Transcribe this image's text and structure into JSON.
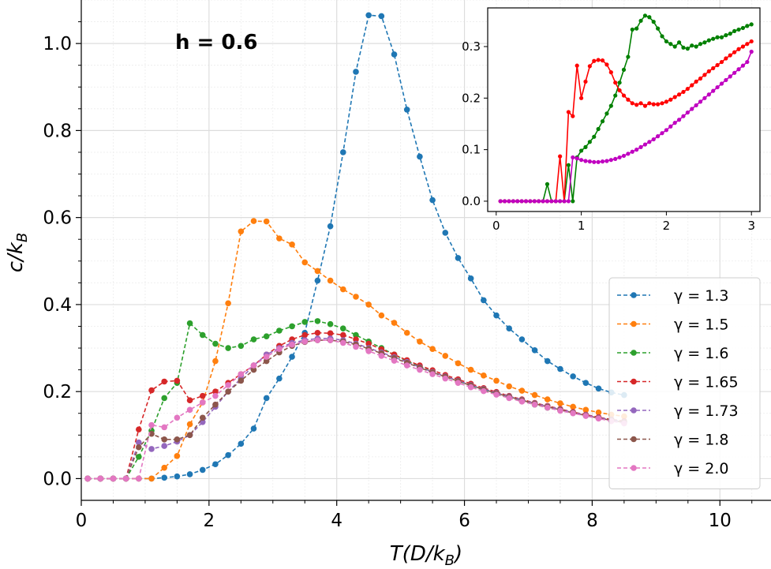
{
  "chart_data": [
    {
      "type": "line",
      "title": "",
      "annotation": "h = 0.6",
      "xlabel": "T(D/k_B)",
      "ylabel": "c/k_B",
      "xlim": [
        0,
        10.8
      ],
      "ylim": [
        -0.05,
        1.1
      ],
      "xticks": [
        0,
        2,
        4,
        6,
        8,
        10
      ],
      "yticks": [
        0.0,
        0.2,
        0.4,
        0.6,
        0.8,
        1.0
      ],
      "xtick_labels": [
        "0",
        "2",
        "4",
        "6",
        "8",
        "10"
      ],
      "ytick_labels": [
        "0.0",
        "0.2",
        "0.4",
        "0.6",
        "0.8",
        "1.0"
      ],
      "grid": true,
      "legend_position": "lower-right",
      "series": [
        {
          "name": "γ = 1.3",
          "color": "#1f77b4",
          "x": [
            0.1,
            0.3,
            0.5,
            0.7,
            0.9,
            1.1,
            1.3,
            1.5,
            1.7,
            1.9,
            2.1,
            2.3,
            2.5,
            2.7,
            2.9,
            3.1,
            3.3,
            3.5,
            3.7,
            3.9,
            4.1,
            4.3,
            4.5,
            4.7,
            4.9,
            5.1,
            5.3,
            5.5,
            5.7,
            5.9,
            6.1,
            6.3,
            6.5,
            6.7,
            6.9,
            7.1,
            7.3,
            7.5,
            7.7,
            7.9,
            8.1,
            8.3,
            8.5
          ],
          "y": [
            0.0,
            0.0,
            0.0,
            0.0,
            0.0,
            0.0,
            0.002,
            0.005,
            0.01,
            0.02,
            0.033,
            0.054,
            0.08,
            0.115,
            0.185,
            0.23,
            0.28,
            0.335,
            0.455,
            0.58,
            0.75,
            0.935,
            1.065,
            1.063,
            0.975,
            0.848,
            0.74,
            0.64,
            0.565,
            0.507,
            0.46,
            0.41,
            0.375,
            0.345,
            0.32,
            0.295,
            0.27,
            0.252,
            0.235,
            0.22,
            0.207,
            0.198,
            0.192
          ]
        },
        {
          "name": "γ = 1.5",
          "color": "#ff7f0e",
          "x": [
            0.1,
            0.3,
            0.5,
            0.7,
            0.9,
            1.1,
            1.3,
            1.5,
            1.7,
            1.9,
            2.1,
            2.3,
            2.5,
            2.7,
            2.9,
            3.1,
            3.3,
            3.5,
            3.7,
            3.9,
            4.1,
            4.3,
            4.5,
            4.7,
            4.9,
            5.1,
            5.3,
            5.5,
            5.7,
            5.9,
            6.1,
            6.3,
            6.5,
            6.7,
            6.9,
            7.1,
            7.3,
            7.5,
            7.7,
            7.9,
            8.1,
            8.3,
            8.5
          ],
          "y": [
            0.0,
            0.0,
            0.0,
            0.0,
            0.0,
            0.0,
            0.025,
            0.052,
            0.125,
            0.175,
            0.27,
            0.403,
            0.568,
            0.592,
            0.591,
            0.552,
            0.538,
            0.497,
            0.477,
            0.455,
            0.435,
            0.418,
            0.4,
            0.375,
            0.358,
            0.335,
            0.315,
            0.298,
            0.282,
            0.265,
            0.25,
            0.237,
            0.225,
            0.212,
            0.202,
            0.192,
            0.182,
            0.173,
            0.165,
            0.158,
            0.152,
            0.147,
            0.143
          ]
        },
        {
          "name": "γ = 1.6",
          "color": "#2ca02c",
          "x": [
            0.1,
            0.3,
            0.5,
            0.7,
            0.9,
            1.1,
            1.3,
            1.5,
            1.7,
            1.9,
            2.1,
            2.3,
            2.5,
            2.7,
            2.9,
            3.1,
            3.3,
            3.5,
            3.7,
            3.9,
            4.1,
            4.3,
            4.5,
            4.7,
            4.9,
            5.1,
            5.3,
            5.5,
            5.7,
            5.9,
            6.1,
            6.3,
            6.5,
            6.7,
            6.9,
            7.1,
            7.3,
            7.5,
            7.7,
            7.9,
            8.1,
            8.3,
            8.5
          ],
          "y": [
            0.0,
            0.0,
            0.0,
            0.0,
            0.05,
            0.11,
            0.185,
            0.22,
            0.357,
            0.33,
            0.31,
            0.3,
            0.305,
            0.32,
            0.327,
            0.34,
            0.35,
            0.36,
            0.362,
            0.355,
            0.345,
            0.33,
            0.315,
            0.3,
            0.285,
            0.27,
            0.258,
            0.245,
            0.235,
            0.224,
            0.214,
            0.204,
            0.195,
            0.186,
            0.178,
            0.17,
            0.163,
            0.157,
            0.151,
            0.145,
            0.14,
            0.135,
            0.13
          ]
        },
        {
          "name": "γ = 1.65",
          "color": "#d62728",
          "x": [
            0.1,
            0.3,
            0.5,
            0.7,
            0.9,
            1.1,
            1.3,
            1.5,
            1.7,
            1.9,
            2.1,
            2.3,
            2.5,
            2.7,
            2.9,
            3.1,
            3.3,
            3.5,
            3.7,
            3.9,
            4.1,
            4.3,
            4.5,
            4.7,
            4.9,
            5.1,
            5.3,
            5.5,
            5.7,
            5.9,
            6.1,
            6.3,
            6.5,
            6.7,
            6.9,
            7.1,
            7.3,
            7.5,
            7.7,
            7.9,
            8.1,
            8.3,
            8.5
          ],
          "y": [
            0.0,
            0.0,
            0.0,
            0.0,
            0.113,
            0.203,
            0.223,
            0.225,
            0.18,
            0.19,
            0.2,
            0.22,
            0.24,
            0.26,
            0.285,
            0.305,
            0.32,
            0.33,
            0.335,
            0.334,
            0.33,
            0.32,
            0.31,
            0.297,
            0.285,
            0.272,
            0.26,
            0.249,
            0.238,
            0.228,
            0.218,
            0.208,
            0.199,
            0.19,
            0.182,
            0.174,
            0.167,
            0.16,
            0.153,
            0.147,
            0.141,
            0.136,
            0.132
          ]
        },
        {
          "name": "γ = 1.73",
          "color": "#9467bd",
          "x": [
            0.1,
            0.3,
            0.5,
            0.7,
            0.9,
            1.1,
            1.3,
            1.5,
            1.7,
            1.9,
            2.1,
            2.3,
            2.5,
            2.7,
            2.9,
            3.1,
            3.3,
            3.5,
            3.7,
            3.9,
            4.1,
            4.3,
            4.5,
            4.7,
            4.9,
            5.1,
            5.3,
            5.5,
            5.7,
            5.9,
            6.1,
            6.3,
            6.5,
            6.7,
            6.9,
            7.1,
            7.3,
            7.5,
            7.7,
            7.9,
            8.1,
            8.3,
            8.5
          ],
          "y": [
            0.0,
            0.0,
            0.0,
            0.0,
            0.083,
            0.068,
            0.075,
            0.085,
            0.1,
            0.13,
            0.165,
            0.2,
            0.23,
            0.26,
            0.285,
            0.3,
            0.312,
            0.318,
            0.322,
            0.322,
            0.318,
            0.31,
            0.3,
            0.29,
            0.279,
            0.268,
            0.256,
            0.245,
            0.235,
            0.225,
            0.215,
            0.206,
            0.197,
            0.189,
            0.181,
            0.173,
            0.166,
            0.159,
            0.152,
            0.146,
            0.14,
            0.135,
            0.13
          ]
        },
        {
          "name": "γ = 1.8",
          "color": "#8c564b",
          "x": [
            0.1,
            0.3,
            0.5,
            0.7,
            0.9,
            1.1,
            1.3,
            1.5,
            1.7,
            1.9,
            2.1,
            2.3,
            2.5,
            2.7,
            2.9,
            3.1,
            3.3,
            3.5,
            3.7,
            3.9,
            4.1,
            4.3,
            4.5,
            4.7,
            4.9,
            5.1,
            5.3,
            5.5,
            5.7,
            5.9,
            6.1,
            6.3,
            6.5,
            6.7,
            6.9,
            7.1,
            7.3,
            7.5,
            7.7,
            7.9,
            8.1,
            8.3,
            8.5
          ],
          "y": [
            0.0,
            0.0,
            0.0,
            0.0,
            0.072,
            0.103,
            0.09,
            0.09,
            0.1,
            0.14,
            0.17,
            0.2,
            0.225,
            0.25,
            0.27,
            0.29,
            0.305,
            0.314,
            0.318,
            0.318,
            0.315,
            0.308,
            0.298,
            0.288,
            0.277,
            0.266,
            0.255,
            0.244,
            0.234,
            0.224,
            0.214,
            0.205,
            0.196,
            0.188,
            0.18,
            0.172,
            0.165,
            0.158,
            0.151,
            0.145,
            0.139,
            0.134,
            0.129
          ]
        },
        {
          "name": "γ = 2.0",
          "color": "#e377c2",
          "x": [
            0.1,
            0.3,
            0.5,
            0.7,
            0.9,
            1.1,
            1.3,
            1.5,
            1.7,
            1.9,
            2.1,
            2.3,
            2.5,
            2.7,
            2.9,
            3.1,
            3.3,
            3.5,
            3.7,
            3.9,
            4.1,
            4.3,
            4.5,
            4.7,
            4.9,
            5.1,
            5.3,
            5.5,
            5.7,
            5.9,
            6.1,
            6.3,
            6.5,
            6.7,
            6.9,
            7.1,
            7.3,
            7.5,
            7.7,
            7.9,
            8.1,
            8.3,
            8.5
          ],
          "y": [
            0.0,
            0.0,
            0.0,
            0.0,
            0.0,
            0.123,
            0.118,
            0.14,
            0.158,
            0.175,
            0.19,
            0.215,
            0.24,
            0.26,
            0.28,
            0.298,
            0.308,
            0.315,
            0.318,
            0.318,
            0.312,
            0.303,
            0.293,
            0.282,
            0.271,
            0.26,
            0.25,
            0.24,
            0.23,
            0.22,
            0.21,
            0.201,
            0.193,
            0.185,
            0.177,
            0.17,
            0.163,
            0.156,
            0.15,
            0.144,
            0.138,
            0.132,
            0.127
          ]
        }
      ]
    },
    {
      "type": "line",
      "title": "",
      "xlabel": "",
      "ylabel": "",
      "xlim": [
        -0.1,
        3.1
      ],
      "ylim": [
        -0.02,
        0.375
      ],
      "xticks": [
        0,
        1,
        2,
        3
      ],
      "yticks": [
        0.0,
        0.1,
        0.2,
        0.3
      ],
      "xtick_labels": [
        "0",
        "1",
        "2",
        "3"
      ],
      "ytick_labels": [
        "0.0",
        "0.1",
        "0.2",
        "0.3"
      ],
      "grid": false,
      "series": [
        {
          "name": "green",
          "color": "#008000",
          "x": [
            0.05,
            0.1,
            0.15,
            0.2,
            0.25,
            0.3,
            0.35,
            0.4,
            0.45,
            0.5,
            0.55,
            0.6,
            0.65,
            0.7,
            0.75,
            0.8,
            0.85,
            0.9,
            0.95,
            1.0,
            1.05,
            1.1,
            1.15,
            1.2,
            1.25,
            1.3,
            1.35,
            1.4,
            1.45,
            1.5,
            1.55,
            1.6,
            1.65,
            1.7,
            1.75,
            1.8,
            1.85,
            1.9,
            1.95,
            2.0,
            2.05,
            2.1,
            2.15,
            2.2,
            2.25,
            2.3,
            2.35,
            2.4,
            2.45,
            2.5,
            2.55,
            2.6,
            2.65,
            2.7,
            2.75,
            2.8,
            2.85,
            2.9,
            2.95,
            3.0
          ],
          "y": [
            0.0,
            0.0,
            0.0,
            0.0,
            0.0,
            0.0,
            0.0,
            0.0,
            0.0,
            0.0,
            0.0,
            0.033,
            0.0,
            0.0,
            0.0,
            0.0,
            0.07,
            0.0,
            0.085,
            0.098,
            0.105,
            0.115,
            0.125,
            0.14,
            0.155,
            0.17,
            0.185,
            0.205,
            0.23,
            0.255,
            0.28,
            0.333,
            0.335,
            0.35,
            0.36,
            0.357,
            0.348,
            0.335,
            0.32,
            0.31,
            0.305,
            0.3,
            0.308,
            0.298,
            0.296,
            0.302,
            0.3,
            0.305,
            0.308,
            0.312,
            0.315,
            0.318,
            0.318,
            0.322,
            0.325,
            0.33,
            0.333,
            0.336,
            0.34,
            0.343
          ]
        },
        {
          "name": "red",
          "color": "#ff0000",
          "x": [
            0.05,
            0.1,
            0.15,
            0.2,
            0.25,
            0.3,
            0.35,
            0.4,
            0.45,
            0.5,
            0.55,
            0.6,
            0.65,
            0.7,
            0.75,
            0.8,
            0.85,
            0.9,
            0.95,
            1.0,
            1.05,
            1.1,
            1.15,
            1.2,
            1.25,
            1.3,
            1.35,
            1.4,
            1.45,
            1.5,
            1.55,
            1.6,
            1.65,
            1.7,
            1.75,
            1.8,
            1.85,
            1.9,
            1.95,
            2.0,
            2.05,
            2.1,
            2.15,
            2.2,
            2.25,
            2.3,
            2.35,
            2.4,
            2.45,
            2.5,
            2.55,
            2.6,
            2.65,
            2.7,
            2.75,
            2.8,
            2.85,
            2.9,
            2.95,
            3.0
          ],
          "y": [
            0.0,
            0.0,
            0.0,
            0.0,
            0.0,
            0.0,
            0.0,
            0.0,
            0.0,
            0.0,
            0.0,
            0.0,
            0.0,
            0.0,
            0.087,
            0.0,
            0.173,
            0.165,
            0.263,
            0.2,
            0.232,
            0.262,
            0.272,
            0.274,
            0.273,
            0.265,
            0.25,
            0.23,
            0.215,
            0.205,
            0.197,
            0.19,
            0.187,
            0.19,
            0.185,
            0.19,
            0.188,
            0.188,
            0.19,
            0.193,
            0.197,
            0.202,
            0.207,
            0.212,
            0.218,
            0.225,
            0.232,
            0.238,
            0.245,
            0.252,
            0.258,
            0.264,
            0.27,
            0.277,
            0.283,
            0.289,
            0.295,
            0.3,
            0.305,
            0.31
          ]
        },
        {
          "name": "magenta",
          "color": "#c000c0",
          "x": [
            0.05,
            0.1,
            0.15,
            0.2,
            0.25,
            0.3,
            0.35,
            0.4,
            0.45,
            0.5,
            0.55,
            0.6,
            0.65,
            0.7,
            0.75,
            0.8,
            0.85,
            0.9,
            0.95,
            1.0,
            1.05,
            1.1,
            1.15,
            1.2,
            1.25,
            1.3,
            1.35,
            1.4,
            1.45,
            1.5,
            1.55,
            1.6,
            1.65,
            1.7,
            1.75,
            1.8,
            1.85,
            1.9,
            1.95,
            2.0,
            2.05,
            2.1,
            2.15,
            2.2,
            2.25,
            2.3,
            2.35,
            2.4,
            2.45,
            2.5,
            2.55,
            2.6,
            2.65,
            2.7,
            2.75,
            2.8,
            2.85,
            2.9,
            2.95,
            3.0
          ],
          "y": [
            0.0,
            0.0,
            0.0,
            0.0,
            0.0,
            0.0,
            0.0,
            0.0,
            0.0,
            0.0,
            0.0,
            0.0,
            0.0,
            0.0,
            0.0,
            0.0,
            0.0,
            0.085,
            0.083,
            0.08,
            0.078,
            0.077,
            0.076,
            0.076,
            0.077,
            0.078,
            0.08,
            0.082,
            0.085,
            0.088,
            0.092,
            0.096,
            0.1,
            0.105,
            0.11,
            0.115,
            0.12,
            0.126,
            0.132,
            0.138,
            0.145,
            0.152,
            0.158,
            0.165,
            0.172,
            0.179,
            0.186,
            0.193,
            0.2,
            0.207,
            0.214,
            0.221,
            0.228,
            0.235,
            0.242,
            0.249,
            0.256,
            0.263,
            0.27,
            0.29
          ]
        }
      ]
    }
  ]
}
